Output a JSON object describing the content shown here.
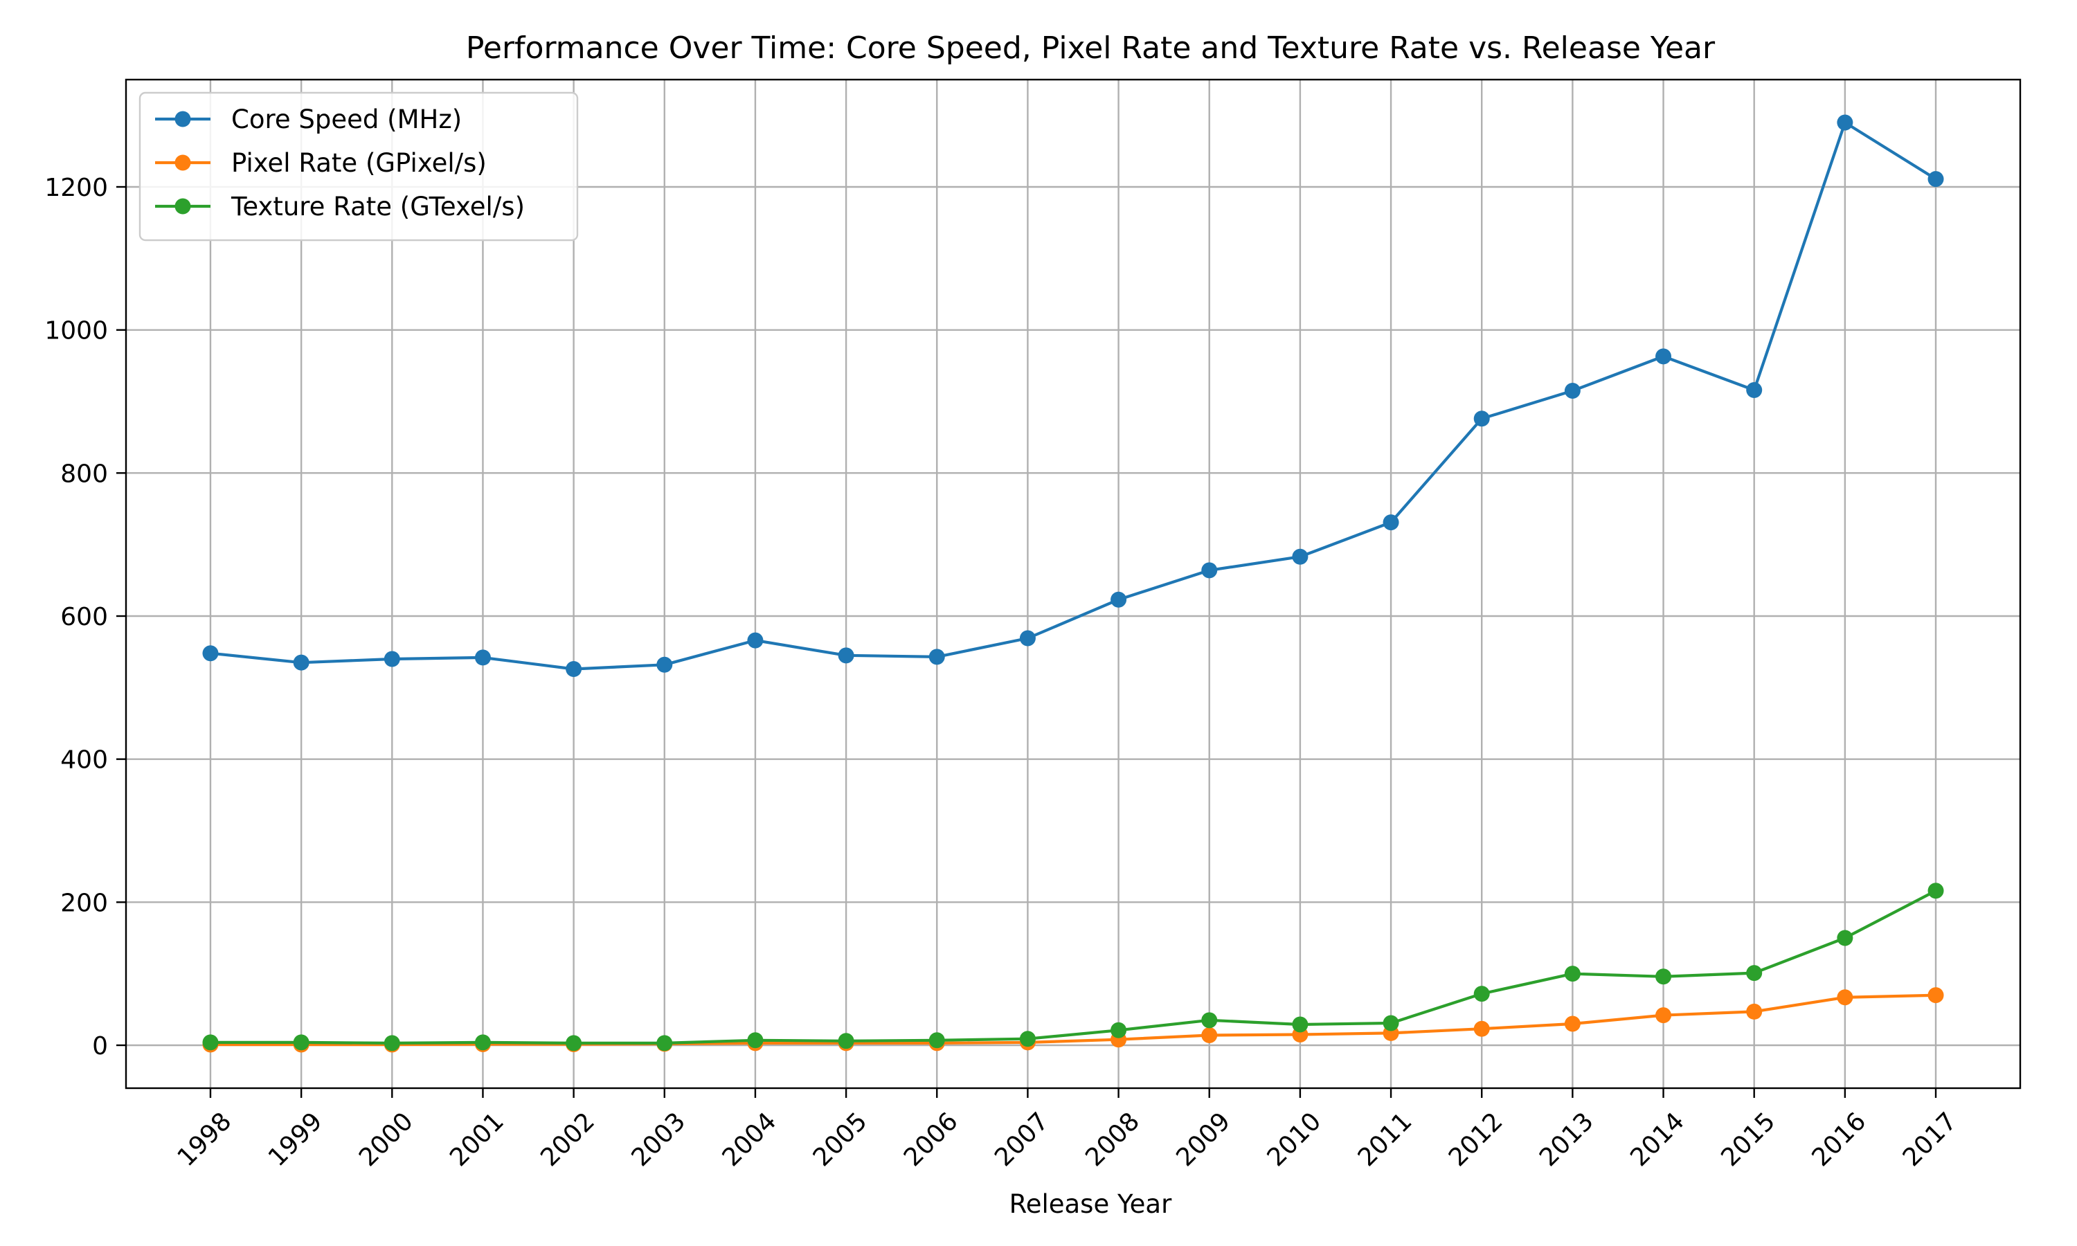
{
  "chart_data": {
    "type": "line",
    "title": "Performance Over Time: Core Speed, Pixel Rate and Texture Rate vs. Release Year",
    "xlabel": "Release Year",
    "ylabel": "",
    "x": [
      1998,
      1999,
      2000,
      2001,
      2002,
      2003,
      2004,
      2005,
      2006,
      2007,
      2008,
      2009,
      2010,
      2011,
      2012,
      2013,
      2014,
      2015,
      2016,
      2017
    ],
    "x_tick_labels": [
      "1998",
      "1999",
      "2000",
      "2001",
      "2002",
      "2003",
      "2004",
      "2005",
      "2006",
      "2007",
      "2008",
      "2009",
      "2010",
      "2011",
      "2012",
      "2013",
      "2014",
      "2015",
      "2016",
      "2017"
    ],
    "ylim": [
      -60,
      1350
    ],
    "y_ticks": [
      0,
      200,
      400,
      600,
      800,
      1000,
      1200
    ],
    "y_tick_labels": [
      "0",
      "200",
      "400",
      "600",
      "800",
      "1000",
      "1200"
    ],
    "grid": true,
    "legend_position": "top-left",
    "series": [
      {
        "name": "Core Speed (MHz)",
        "color": "#1f77b4",
        "values": [
          548,
          535,
          540,
          542,
          526,
          532,
          566,
          545,
          543,
          569,
          623,
          664,
          683,
          731,
          876,
          915,
          963,
          916,
          1290,
          1211
        ]
      },
      {
        "name": "Pixel Rate (GPixel/s)",
        "color": "#ff7f0e",
        "values": [
          1,
          1,
          1,
          1.5,
          1.5,
          2,
          3,
          3,
          3,
          4,
          8,
          14,
          15,
          17,
          23,
          30,
          42,
          47,
          67,
          70
        ]
      },
      {
        "name": "Texture Rate (GTexel/s)",
        "color": "#2ca02c",
        "values": [
          4,
          4,
          3,
          4,
          3,
          3,
          7,
          6,
          7,
          9,
          21,
          35,
          29,
          31,
          72,
          100,
          96,
          101,
          150,
          216
        ]
      }
    ]
  }
}
